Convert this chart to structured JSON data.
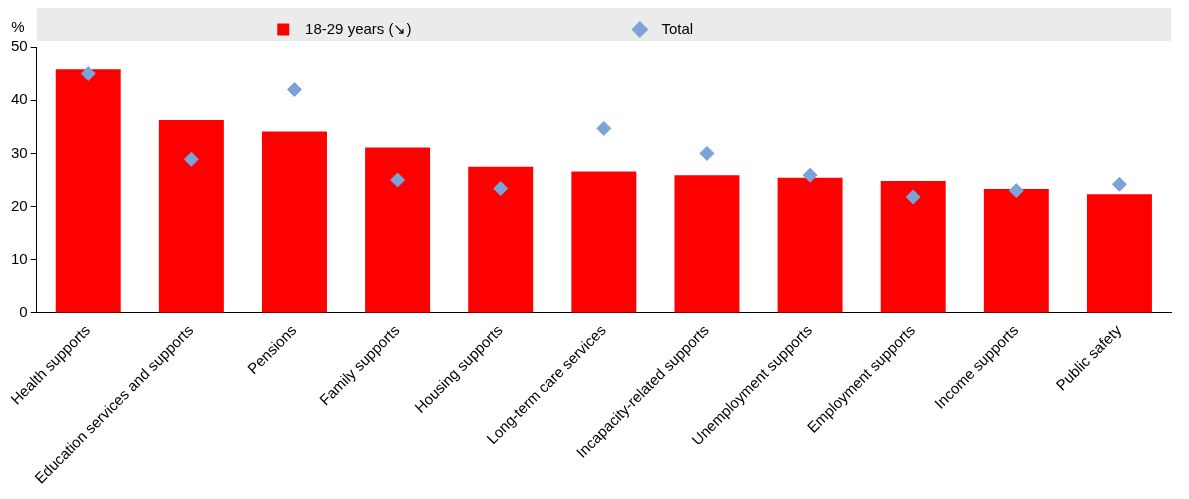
{
  "chart_data": {
    "type": "bar",
    "ylabel": "%",
    "categories": [
      "Health supports",
      "Education services and supports",
      "Pensions",
      "Family supports",
      "Housing supports",
      "Long-term care services",
      "Incapacity-related supports",
      "Unemployment supports",
      "Employment supports",
      "Income supports",
      "Public safety"
    ],
    "series": [
      {
        "name": "18-29 years (↘)",
        "color": "#ff0000",
        "values": [
          45.8,
          36.3,
          34.1,
          31.1,
          27.5,
          26.6,
          25.9,
          25.4,
          24.8,
          23.3,
          22.3
        ]
      },
      {
        "name": "Total",
        "type": "scatter",
        "color": "#7ba3d8",
        "marker": "diamond",
        "values": [
          45,
          28.9,
          42,
          25,
          23.4,
          34.7,
          30,
          25.9,
          21.8,
          23,
          24.2
        ]
      }
    ],
    "ylim": [
      0,
      50
    ],
    "yticks": [
      0,
      10,
      20,
      30,
      40,
      50
    ],
    "grid": false,
    "legend": "top"
  }
}
